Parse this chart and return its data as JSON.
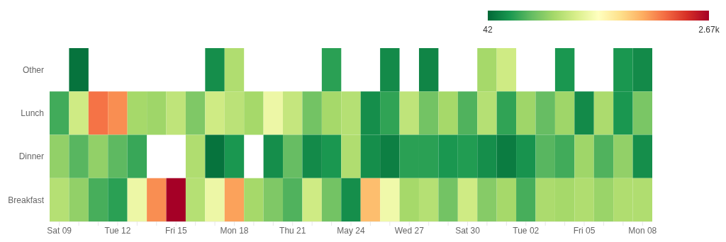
{
  "chart_data": {
    "type": "heatmap",
    "categories": [
      "Sat 09",
      null,
      null,
      "Tue 12",
      null,
      null,
      "Fri 15",
      null,
      null,
      "Mon 18",
      null,
      null,
      "Thu 21",
      null,
      null,
      "May 24",
      null,
      null,
      "Wed 27",
      null,
      null,
      "Sat 30",
      null,
      null,
      "Tue 02",
      null,
      null,
      "Fri 05",
      null,
      null,
      "Mon 08"
    ],
    "y_categories": [
      "Other",
      "Lunch",
      "Dinner",
      "Breakfast"
    ],
    "cells": [
      [
        null,
        100,
        null,
        null,
        null,
        null,
        null,
        null,
        250,
        880,
        null,
        null,
        null,
        null,
        360,
        null,
        null,
        230,
        null,
        200,
        null,
        null,
        830,
        1040,
        null,
        null,
        300,
        null,
        null,
        300,
        230
      ],
      [
        440,
        1040,
        2120,
        2010,
        830,
        800,
        960,
        670,
        1040,
        940,
        830,
        1230,
        990,
        620,
        830,
        910,
        250,
        380,
        960,
        620,
        830,
        490,
        910,
        380,
        800,
        570,
        800,
        230,
        860,
        300,
        650
      ],
      [
        750,
        520,
        750,
        540,
        410,
        null,
        null,
        880,
        100,
        300,
        null,
        250,
        570,
        230,
        300,
        880,
        250,
        170,
        360,
        360,
        300,
        330,
        250,
        150,
        280,
        520,
        440,
        800,
        490,
        750,
        250
      ],
      [
        910,
        750,
        460,
        360,
        1230,
        2010,
        2670,
        910,
        1230,
        1930,
        830,
        670,
        490,
        1040,
        620,
        250,
        1800,
        1250,
        830,
        910,
        620,
        1040,
        700,
        830,
        460,
        860,
        830,
        880,
        780,
        880,
        880
      ]
    ],
    "clim": [
      42,
      2670
    ],
    "cticks": [
      42,
      {
        "value": 2670,
        "label": "2.67k"
      }
    ]
  }
}
